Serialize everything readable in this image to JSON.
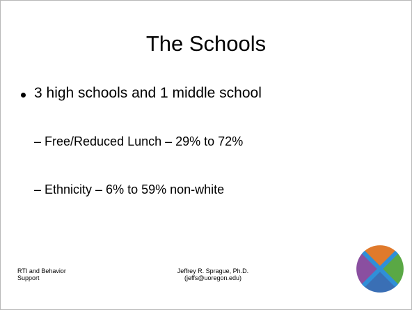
{
  "slide": {
    "title": "The Schools",
    "bullets": [
      {
        "text": "3 high schools and 1 middle school",
        "subitems": [
          "– Free/Reduced Lunch – 29% to 72%",
          "– Ethnicity – 6% to 59% non-white"
        ]
      }
    ],
    "footer": {
      "left": [
        "RTI and Behavior",
        "Support"
      ],
      "center": [
        "Jeffrey R. Sprague, Ph.D.",
        "(jeffs@uoregon.edu)"
      ]
    }
  }
}
